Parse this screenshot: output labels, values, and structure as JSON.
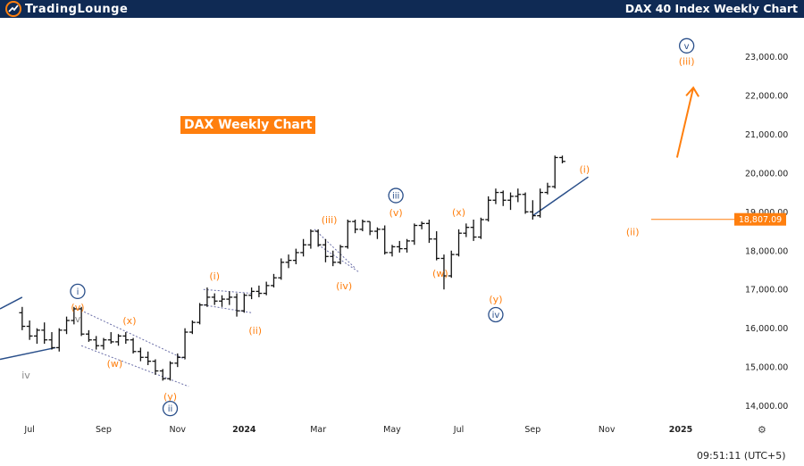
{
  "header": {
    "logo_text": "TradingLounge",
    "title": "DAX 40 Index Weekly Chart"
  },
  "chart_label": "DAX Weekly Chart",
  "clock": "09:51:11 (UTC+5)",
  "colors": {
    "orange": "#ff7f0e",
    "navy": "#2a4f8a",
    "gray": "#888888",
    "bar": "#111111"
  },
  "chart_data": {
    "type": "ohlc",
    "title": "DAX 40 Index Weekly Chart",
    "y_ticks": [
      14000,
      15000,
      16000,
      17000,
      18000,
      19000,
      20000,
      21000,
      22000,
      23000
    ],
    "y_tick_labels": [
      "14,000.00",
      "15,000.00",
      "16,000.00",
      "17,000.00",
      "18,000.00",
      "19,000.00",
      "20,000.00",
      "21,000.00",
      "22,000.00",
      "23,000.00"
    ],
    "ylim": [
      13600,
      24000
    ],
    "x_ticks": [
      {
        "label": "Jul",
        "week": 1,
        "bold": false
      },
      {
        "label": "Sep",
        "week": 11,
        "bold": false
      },
      {
        "label": "Nov",
        "week": 21,
        "bold": false
      },
      {
        "label": "2024",
        "week": 30,
        "bold": true
      },
      {
        "label": "Mar",
        "week": 40,
        "bold": false
      },
      {
        "label": "May",
        "week": 50,
        "bold": false
      },
      {
        "label": "Jul",
        "week": 59,
        "bold": false
      },
      {
        "label": "Sep",
        "week": 69,
        "bold": false
      },
      {
        "label": "Nov",
        "week": 79,
        "bold": false
      },
      {
        "label": "2025",
        "week": 89,
        "bold": true
      }
    ],
    "x_range": [
      -3,
      96
    ],
    "price_marker": {
      "value": 18807.09,
      "label": "18,807.09"
    },
    "bars": [
      [
        16400,
        16550,
        15950,
        16050
      ],
      [
        16050,
        16200,
        15700,
        15800
      ],
      [
        15800,
        16000,
        15600,
        15950
      ],
      [
        15950,
        16150,
        15600,
        15700
      ],
      [
        15700,
        15900,
        15450,
        15500
      ],
      [
        15500,
        16000,
        15400,
        15950
      ],
      [
        15950,
        16300,
        15850,
        16200
      ],
      [
        16200,
        16550,
        16100,
        16500
      ],
      [
        16500,
        16550,
        15800,
        15850
      ],
      [
        15850,
        15950,
        15650,
        15700
      ],
      [
        15700,
        15800,
        15450,
        15550
      ],
      [
        15550,
        15750,
        15450,
        15700
      ],
      [
        15700,
        15900,
        15600,
        15650
      ],
      [
        15650,
        15850,
        15550,
        15800
      ],
      [
        15800,
        15900,
        15600,
        15700
      ],
      [
        15700,
        15750,
        15350,
        15400
      ],
      [
        15400,
        15500,
        15150,
        15250
      ],
      [
        15250,
        15400,
        15050,
        15150
      ],
      [
        15150,
        15200,
        14800,
        14900
      ],
      [
        14900,
        14950,
        14650,
        14700
      ],
      [
        14700,
        15150,
        14650,
        15100
      ],
      [
        15100,
        15350,
        15000,
        15250
      ],
      [
        15250,
        16000,
        15200,
        15900
      ],
      [
        15900,
        16200,
        15850,
        16150
      ],
      [
        16150,
        16650,
        16100,
        16600
      ],
      [
        16600,
        17050,
        16550,
        16800
      ],
      [
        16800,
        16900,
        16600,
        16700
      ],
      [
        16700,
        16850,
        16550,
        16750
      ],
      [
        16750,
        16950,
        16600,
        16800
      ],
      [
        16800,
        16900,
        16300,
        16450
      ],
      [
        16450,
        16900,
        16400,
        16850
      ],
      [
        16850,
        17050,
        16750,
        16950
      ],
      [
        16950,
        17100,
        16800,
        16900
      ],
      [
        16900,
        17200,
        16850,
        17100
      ],
      [
        17100,
        17400,
        17050,
        17300
      ],
      [
        17300,
        17800,
        17250,
        17700
      ],
      [
        17700,
        17900,
        17550,
        17750
      ],
      [
        17750,
        18050,
        17650,
        17950
      ],
      [
        17950,
        18300,
        17850,
        18150
      ],
      [
        18150,
        18550,
        18050,
        18500
      ],
      [
        18500,
        18550,
        18100,
        18150
      ],
      [
        18150,
        18300,
        17700,
        17850
      ],
      [
        17850,
        18000,
        17600,
        17700
      ],
      [
        17700,
        18150,
        17650,
        18100
      ],
      [
        18100,
        18800,
        18050,
        18750
      ],
      [
        18750,
        18800,
        18450,
        18550
      ],
      [
        18550,
        18800,
        18500,
        18750
      ],
      [
        18750,
        18750,
        18400,
        18500
      ],
      [
        18500,
        18600,
        18300,
        18550
      ],
      [
        18550,
        18650,
        17900,
        17950
      ],
      [
        17950,
        18150,
        17850,
        18100
      ],
      [
        18100,
        18250,
        17950,
        18050
      ],
      [
        18050,
        18300,
        17950,
        18250
      ],
      [
        18250,
        18700,
        18150,
        18650
      ],
      [
        18650,
        18750,
        18550,
        18700
      ],
      [
        18700,
        18800,
        18200,
        18300
      ],
      [
        18300,
        18500,
        17750,
        17800
      ],
      [
        17800,
        17900,
        17000,
        17350
      ],
      [
        17350,
        18000,
        17300,
        17900
      ],
      [
        17900,
        18550,
        17850,
        18450
      ],
      [
        18450,
        18700,
        18350,
        18600
      ],
      [
        18600,
        18800,
        18250,
        18350
      ],
      [
        18350,
        18850,
        18300,
        18800
      ],
      [
        18800,
        19400,
        18750,
        19300
      ],
      [
        19300,
        19600,
        19200,
        19500
      ],
      [
        19500,
        19550,
        19150,
        19300
      ],
      [
        19300,
        19500,
        19050,
        19400
      ],
      [
        19400,
        19600,
        19250,
        19450
      ],
      [
        19450,
        19500,
        18950,
        19000
      ],
      [
        19000,
        19300,
        18800,
        18900
      ],
      [
        18900,
        19600,
        18850,
        19500
      ],
      [
        19500,
        19750,
        19450,
        19650
      ],
      [
        19650,
        20450,
        19600,
        20400
      ],
      [
        20400,
        20450,
        20250,
        20300
      ]
    ],
    "wave_labels": [
      {
        "text": "i",
        "style": "navy-circle"
      },
      {
        "text": "(v)",
        "style": "orange"
      },
      {
        "text": "v",
        "style": "gray"
      },
      {
        "text": "iv",
        "style": "gray"
      },
      {
        "text": "(x)",
        "style": "orange"
      },
      {
        "text": "(w)",
        "style": "orange"
      },
      {
        "text": "(y)",
        "style": "orange"
      },
      {
        "text": "ii",
        "style": "navy-circle"
      },
      {
        "text": "(i)",
        "style": "orange"
      },
      {
        "text": "(ii)",
        "style": "orange"
      },
      {
        "text": "(iii)",
        "style": "orange"
      },
      {
        "text": "(iv)",
        "style": "orange"
      },
      {
        "text": "iii",
        "style": "navy-circle"
      },
      {
        "text": "(v)",
        "style": "orange"
      },
      {
        "text": "(x)",
        "style": "orange"
      },
      {
        "text": "(w)",
        "style": "orange"
      },
      {
        "text": "(y)",
        "style": "orange"
      },
      {
        "text": "iv",
        "style": "navy-circle"
      },
      {
        "text": "(i)",
        "style": "orange"
      },
      {
        "text": "(ii)",
        "style": "orange"
      },
      {
        "text": "v",
        "style": "navy-circle"
      },
      {
        "text": "(iii)",
        "style": "orange"
      }
    ]
  }
}
